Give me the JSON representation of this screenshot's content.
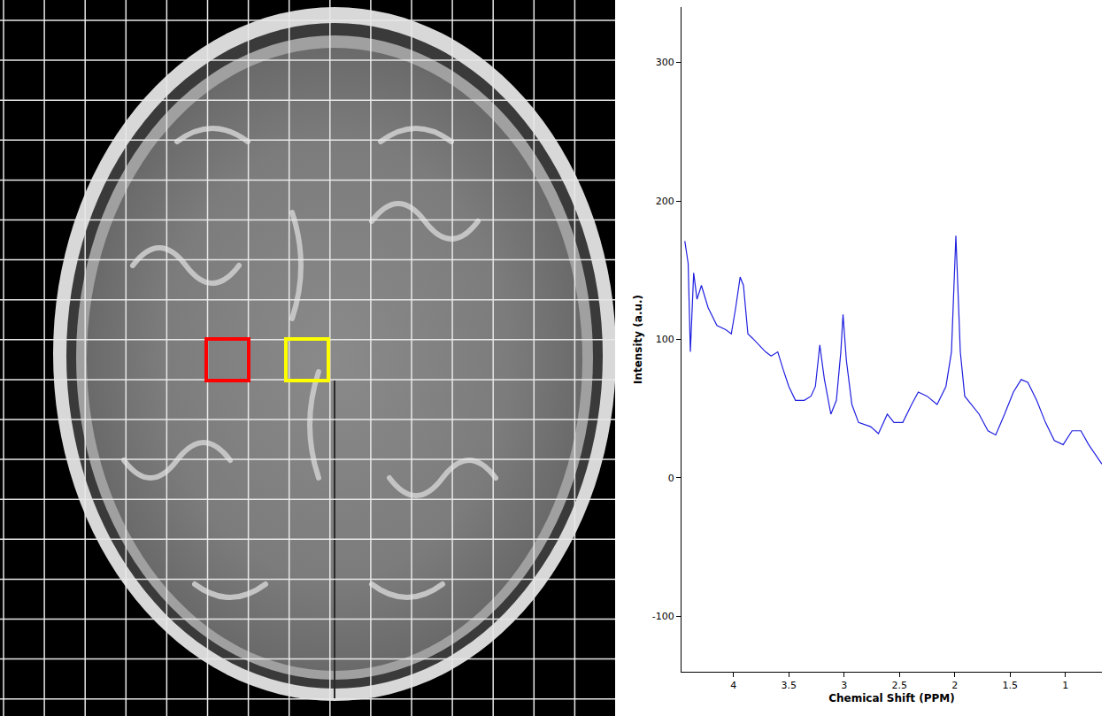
{
  "chart_data": {
    "type": "line",
    "x_label": "Chemical Shift (PPM)",
    "y_label": "Intensity (a.u.)",
    "x": [
      4.44,
      4.41,
      4.39,
      4.36,
      4.33,
      4.29,
      4.23,
      4.15,
      4.07,
      4.02,
      3.98,
      3.94,
      3.91,
      3.87,
      3.83,
      3.77,
      3.71,
      3.66,
      3.6,
      3.55,
      3.5,
      3.44,
      3.36,
      3.3,
      3.26,
      3.22,
      3.18,
      3.12,
      3.07,
      3.03,
      3.01,
      2.98,
      2.93,
      2.87,
      2.76,
      2.69,
      2.61,
      2.55,
      2.47,
      2.39,
      2.33,
      2.25,
      2.16,
      2.08,
      2.03,
      1.99,
      1.95,
      1.91,
      1.85,
      1.78,
      1.7,
      1.63,
      1.55,
      1.47,
      1.4,
      1.34,
      1.26,
      1.18,
      1.1,
      1.02,
      0.94,
      0.86,
      0.79,
      0.71,
      0.67
    ],
    "values": [
      171,
      155,
      91,
      148,
      129,
      139,
      123,
      110,
      107,
      104,
      123,
      145,
      139,
      104,
      101,
      96,
      91,
      88,
      91,
      78,
      66,
      56,
      56,
      59,
      66,
      96,
      72,
      46,
      56,
      91,
      118,
      85,
      53,
      40,
      37,
      32,
      46,
      40,
      40,
      53,
      62,
      59,
      53,
      66,
      91,
      175,
      91,
      59,
      53,
      46,
      34,
      31,
      46,
      62,
      71,
      69,
      56,
      40,
      27,
      24,
      34,
      34,
      24,
      15,
      10
    ],
    "color": "#1f1fe0",
    "xlim": [
      4.47,
      0.67
    ],
    "xticks": [
      4,
      3.5,
      3,
      2.5,
      2,
      1.5,
      1
    ],
    "ylim": [
      -140,
      340
    ],
    "yticks": [
      -100,
      0,
      100,
      200,
      300
    ],
    "grid": false
  }
}
